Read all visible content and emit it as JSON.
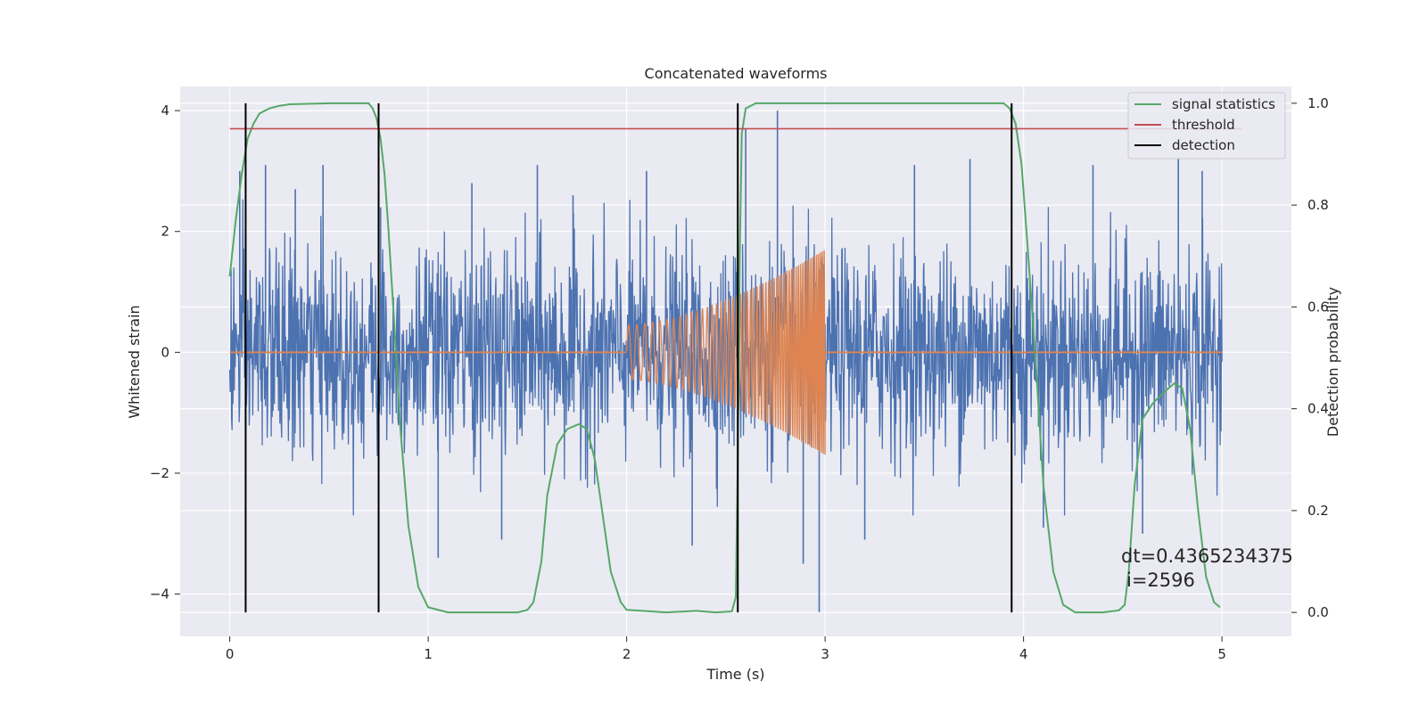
{
  "chart_data": {
    "type": "line",
    "title": "Concatenated waveforms",
    "xlabel": "Time (s)",
    "ylabel": "Whitened strain",
    "y2label": "Detection probability",
    "xlim": [
      -0.25,
      5.35
    ],
    "ylim": [
      -4.7,
      4.4
    ],
    "y2lim": [
      -0.047,
      1.033
    ],
    "xticks": [
      0,
      1,
      2,
      3,
      4,
      5
    ],
    "yticks": [
      -4,
      -2,
      0,
      2,
      4
    ],
    "y2ticks": [
      0.0,
      0.2,
      0.4,
      0.6,
      0.8,
      1.0
    ],
    "grid": true,
    "legend_position": "top-right",
    "legend": [
      "signal statistics",
      "threshold",
      "detection"
    ],
    "colors": {
      "noise": "#4c72b0",
      "injection": "#dd8452",
      "signal_statistics": "#55a868",
      "threshold": "#c44e52",
      "detection": "#000000",
      "plot_bg": "#eaeaf2",
      "grid": "#ffffff"
    },
    "noise": {
      "description_free_note": "",
      "t_start": 0,
      "t_end": 5,
      "amplitude_envelope": 1.5,
      "spike_times": [
        0.05,
        0.18,
        0.33,
        0.47,
        0.76,
        1.05,
        1.22,
        1.37,
        1.55,
        1.73,
        2.1,
        2.33,
        2.6,
        2.76,
        2.89,
        2.97,
        3.2,
        3.45,
        3.73,
        4.1,
        4.35,
        4.6,
        4.78,
        4.9
      ],
      "spike_values": [
        3.0,
        3.1,
        2.7,
        3.1,
        2.4,
        -3.4,
        2.8,
        -3.1,
        3.1,
        2.6,
        3.0,
        -3.2,
        3.7,
        4.0,
        -3.5,
        -4.3,
        -3.1,
        3.1,
        3.2,
        -2.9,
        3.1,
        -3.0,
        3.2,
        3.0
      ]
    },
    "injection": {
      "t_start": 2.0,
      "t_end": 3.0,
      "amp_start": 0.45,
      "amp_end": 1.7,
      "freq_start": 24,
      "freq_end": 110
    },
    "signal_statistics": {
      "t": [
        0.0,
        0.03,
        0.06,
        0.09,
        0.12,
        0.15,
        0.2,
        0.25,
        0.3,
        0.5,
        0.7,
        0.72,
        0.74,
        0.76,
        0.78,
        0.8,
        0.83,
        0.86,
        0.9,
        0.95,
        1.0,
        1.1,
        1.3,
        1.45,
        1.5,
        1.53,
        1.57,
        1.6,
        1.65,
        1.7,
        1.76,
        1.8,
        1.84,
        1.88,
        1.92,
        1.97,
        2.0,
        2.2,
        2.35,
        2.45,
        2.53,
        2.55,
        2.56,
        2.57,
        2.58,
        2.6,
        2.65,
        2.8,
        3.0,
        3.5,
        3.9,
        3.93,
        3.96,
        3.99,
        4.02,
        4.06,
        4.1,
        4.15,
        4.2,
        4.26,
        4.3,
        4.4,
        4.48,
        4.51,
        4.53,
        4.56,
        4.6,
        4.65,
        4.7,
        4.76,
        4.8,
        4.84,
        4.88,
        4.92,
        4.96,
        4.99
      ],
      "p": [
        0.66,
        0.77,
        0.86,
        0.93,
        0.96,
        0.98,
        0.99,
        0.995,
        0.998,
        1.0,
        1.0,
        0.99,
        0.97,
        0.93,
        0.86,
        0.75,
        0.56,
        0.36,
        0.17,
        0.05,
        0.01,
        0.0,
        0.0,
        0.0,
        0.005,
        0.02,
        0.1,
        0.23,
        0.33,
        0.36,
        0.37,
        0.36,
        0.3,
        0.19,
        0.08,
        0.02,
        0.005,
        0.0,
        0.003,
        0.0,
        0.002,
        0.03,
        0.3,
        0.7,
        0.94,
        0.99,
        1.0,
        1.0,
        1.0,
        1.0,
        1.0,
        0.99,
        0.96,
        0.88,
        0.72,
        0.5,
        0.25,
        0.08,
        0.015,
        0.0,
        0.0,
        0.0,
        0.004,
        0.015,
        0.08,
        0.25,
        0.38,
        0.41,
        0.43,
        0.45,
        0.44,
        0.36,
        0.2,
        0.07,
        0.02,
        0.01
      ]
    },
    "threshold": {
      "value": 0.95,
      "t_start": 0,
      "t_end": 5.1
    },
    "detections": [
      0.08,
      0.75,
      2.56,
      3.94
    ],
    "annotation": {
      "dt": "dt=0.4365234375",
      "i": "i=2596"
    }
  }
}
